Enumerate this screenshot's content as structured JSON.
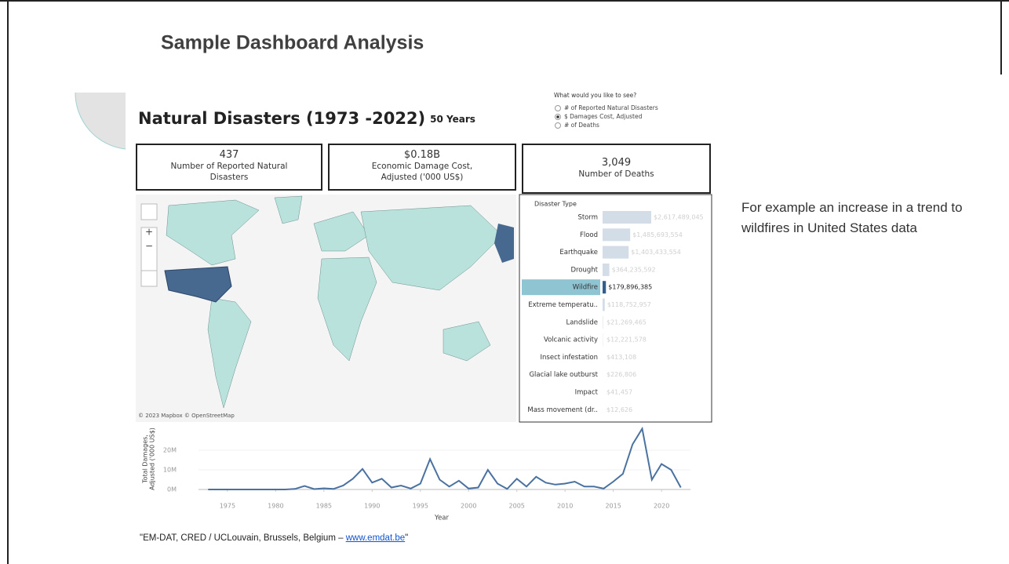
{
  "slide": {
    "title": "Sample Dashboard Analysis",
    "note": "For example an increase in a trend to wildfires in United States data",
    "source": {
      "text": "\"EM-DAT, CRED / UCLouvain, Brussels, Belgium – ",
      "link": "www.emdat.be",
      "end": "\""
    }
  },
  "dashboard": {
    "title": "Natural Disasters (1973 -2022)",
    "subtitle": "50 Years",
    "selector": {
      "prompt": "What would you like to see?",
      "options": [
        "# of Reported Natural Disasters",
        "$ Damages Cost, Adjusted",
        "# of Deaths"
      ],
      "selected": 1
    },
    "kpis": [
      {
        "value": "437",
        "label": "Number of Reported Natural Disasters"
      },
      {
        "value": "$0.18B",
        "label": "Economic Damage Cost, Adjusted ('000 US$)"
      },
      {
        "value": "3,049",
        "label": "Number of Deaths"
      }
    ],
    "map_credit": "© 2023 Mapbox © OpenStreetMap"
  },
  "chart_data": [
    {
      "type": "hbar",
      "legend_title": "Disaster Type",
      "categories": [
        "Storm",
        "Flood",
        "Earthquake",
        "Drought",
        "Wildfire",
        "Extreme temperatu..",
        "Landslide",
        "Volcanic activity",
        "Insect infestation",
        "Glacial lake outburst",
        "Impact",
        "Mass movement (dr.."
      ],
      "values": [
        2617489045,
        1485693554,
        1403433554,
        364235592,
        179896385,
        118752957,
        21269465,
        12221578,
        413108,
        226806,
        41457,
        12626
      ],
      "value_labels": [
        "$2,617,489,045",
        "$1,485,693,554",
        "$1,403,433,554",
        "$364,235,592",
        "$179,896,385",
        "$118,752,957",
        "$21,269,465",
        "$12,221,578",
        "$413,108",
        "$226,806",
        "$41,457",
        "$12,626"
      ],
      "color": "#d3dde8",
      "highlight": "Wildfire",
      "highlight_color": "#2f5f8a"
    },
    {
      "type": "line",
      "xlabel": "Year",
      "ylabel": [
        "Total Damages,",
        "Adjusted ('000 US$)"
      ],
      "color": "#4a72a0",
      "x": [
        1973,
        1974,
        1975,
        1976,
        1977,
        1978,
        1979,
        1980,
        1981,
        1982,
        1983,
        1984,
        1985,
        1986,
        1987,
        1988,
        1989,
        1990,
        1991,
        1992,
        1993,
        1994,
        1995,
        1996,
        1997,
        1998,
        1999,
        2000,
        2001,
        2002,
        2003,
        2004,
        2005,
        2006,
        2007,
        2008,
        2009,
        2010,
        2011,
        2012,
        2013,
        2014,
        2015,
        2016,
        2017,
        2018,
        2019,
        2020,
        2021,
        2022
      ],
      "values": [
        0,
        0,
        0,
        0,
        0,
        0,
        0,
        0,
        0,
        0.3,
        1.8,
        0.2,
        0.6,
        0.3,
        2,
        5.5,
        10.5,
        3.5,
        5.5,
        1,
        2,
        0.5,
        3,
        15.5,
        5,
        1.5,
        4.5,
        0.5,
        1,
        10,
        3,
        0.3,
        5.5,
        1.5,
        6.5,
        3.5,
        2.5,
        3,
        4,
        1.5,
        1.5,
        0.5,
        4,
        8,
        23,
        31,
        5,
        13,
        10,
        1
      ],
      "xlim": [
        1972,
        2023
      ],
      "xticks": [
        1975,
        1980,
        1985,
        1990,
        1995,
        2000,
        2005,
        2010,
        2015,
        2020
      ],
      "ylim": [
        0,
        32
      ],
      "yticks": [
        {
          "value": 0,
          "label": "0M"
        },
        {
          "value": 10,
          "label": "10M"
        },
        {
          "value": 20,
          "label": "20M"
        }
      ]
    }
  ]
}
